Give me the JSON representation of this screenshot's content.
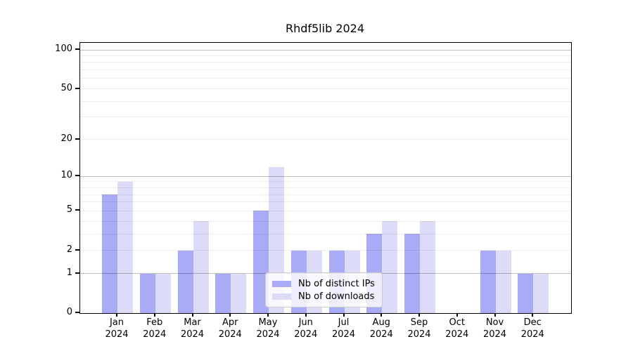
{
  "chart_data": {
    "type": "bar",
    "title": "Rhdf5lib 2024",
    "xlabel": "",
    "ylabel": "",
    "y_scale": "log1p",
    "ylim": [
      0,
      113
    ],
    "grid": true,
    "y_tick_values": [
      0,
      1,
      2,
      5,
      10,
      20,
      50,
      100
    ],
    "y_tick_labels": [
      "0",
      "1",
      "2",
      "5",
      "10",
      "20",
      "50",
      "100"
    ],
    "y_major_grid_values": [
      1,
      10,
      100
    ],
    "y_minor_grid_values": [
      2,
      3,
      4,
      5,
      6,
      7,
      8,
      9,
      20,
      30,
      40,
      50,
      60,
      70,
      80,
      90
    ],
    "categories": [
      {
        "month": "Jan",
        "year": "2024"
      },
      {
        "month": "Feb",
        "year": "2024"
      },
      {
        "month": "Mar",
        "year": "2024"
      },
      {
        "month": "Apr",
        "year": "2024"
      },
      {
        "month": "May",
        "year": "2024"
      },
      {
        "month": "Jun",
        "year": "2024"
      },
      {
        "month": "Jul",
        "year": "2024"
      },
      {
        "month": "Aug",
        "year": "2024"
      },
      {
        "month": "Sep",
        "year": "2024"
      },
      {
        "month": "Oct",
        "year": "2024"
      },
      {
        "month": "Nov",
        "year": "2024"
      },
      {
        "month": "Dec",
        "year": "2024"
      }
    ],
    "series": [
      {
        "name": "Nb of distinct IPs",
        "color": "#aaabf6",
        "values": [
          7,
          1,
          2,
          1,
          5,
          2,
          2,
          3,
          3,
          0,
          2,
          1
        ]
      },
      {
        "name": "Nb of downloads",
        "color": "#dcdcf9",
        "values": [
          9,
          1,
          4,
          1,
          12,
          2,
          2,
          4,
          4,
          0,
          2,
          1
        ]
      }
    ],
    "legend": {
      "position": "bottom-center"
    }
  },
  "colors": {
    "background": "#ffffff",
    "axis": "#000000",
    "grid_major": "#c0c0c0",
    "grid_minor": "#ececec",
    "legend_border": "#cbcbcb"
  }
}
